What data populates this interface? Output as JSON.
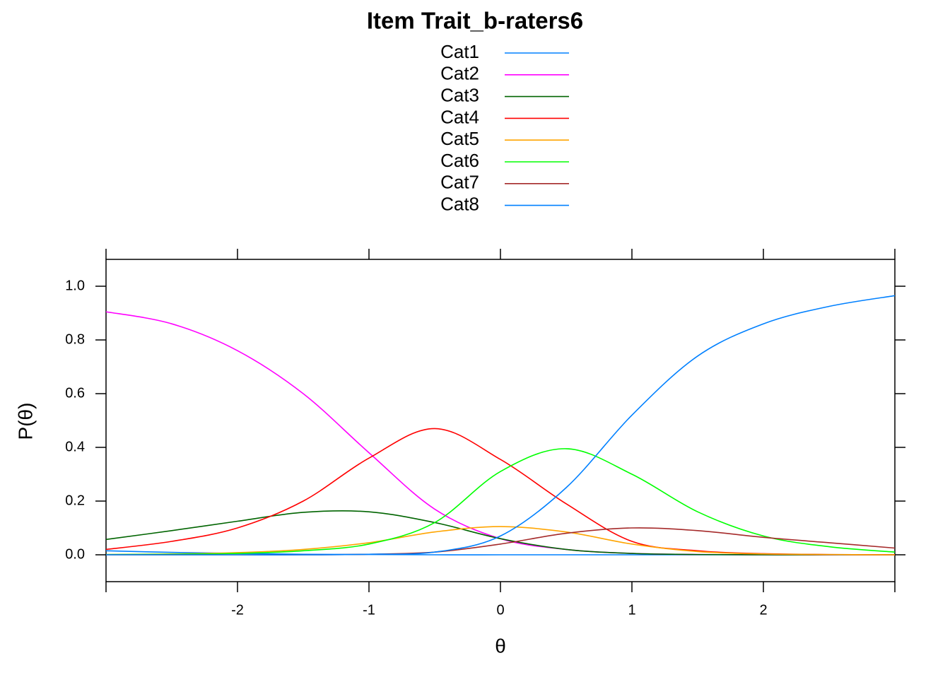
{
  "chart_data": {
    "type": "line",
    "title": "Item Trait_b-raters6",
    "x_label": "θ",
    "y_label": "P(θ)",
    "x": [
      -3,
      -2.5,
      -2,
      -1.5,
      -1,
      -0.5,
      0,
      0.5,
      1,
      1.5,
      2,
      2.5,
      3
    ],
    "series": [
      {
        "name": "Cat1",
        "color": "#0080ff",
        "values": [
          0.015,
          0.009,
          0.005,
          0.002,
          0.001,
          0,
          0,
          0,
          0,
          0,
          0,
          0,
          0
        ]
      },
      {
        "name": "Cat2",
        "color": "#ff00ff",
        "values": [
          0.905,
          0.86,
          0.76,
          0.6,
          0.38,
          0.17,
          0.06,
          0.02,
          0.005,
          0.001,
          0,
          0,
          0
        ]
      },
      {
        "name": "Cat3",
        "color": "#006400",
        "values": [
          0.057,
          0.09,
          0.125,
          0.158,
          0.16,
          0.12,
          0.06,
          0.02,
          0.005,
          0.001,
          0,
          0,
          0
        ]
      },
      {
        "name": "Cat4",
        "color": "#ff0000",
        "values": [
          0.02,
          0.05,
          0.1,
          0.2,
          0.36,
          0.47,
          0.355,
          0.19,
          0.05,
          0.015,
          0.004,
          0.001,
          0
        ]
      },
      {
        "name": "Cat5",
        "color": "#ffa500",
        "values": [
          0.001,
          0.003,
          0.008,
          0.02,
          0.045,
          0.085,
          0.105,
          0.085,
          0.04,
          0.012,
          0.003,
          0.001,
          0
        ]
      },
      {
        "name": "Cat6",
        "color": "#00ff00",
        "values": [
          0.001,
          0.002,
          0.005,
          0.015,
          0.04,
          0.12,
          0.31,
          0.395,
          0.3,
          0.16,
          0.07,
          0.03,
          0.01
        ]
      },
      {
        "name": "Cat7",
        "color": "#a52a2a",
        "values": [
          0,
          0,
          0,
          0,
          0.002,
          0.01,
          0.04,
          0.08,
          0.1,
          0.09,
          0.065,
          0.045,
          0.025
        ]
      },
      {
        "name": "Cat8",
        "color": "#0080ff",
        "values": [
          0,
          0,
          0,
          0,
          0.002,
          0.01,
          0.07,
          0.25,
          0.52,
          0.74,
          0.86,
          0.925,
          0.965
        ]
      }
    ],
    "xlim": [
      -3,
      3
    ],
    "ylim": [
      -0.1,
      1.1
    ],
    "xticks": [
      -2,
      -1,
      0,
      1,
      2
    ],
    "yticks": [
      {
        "value": 0,
        "label": "0.0"
      },
      0.2,
      0.4,
      0.6,
      0.8,
      {
        "value": 1,
        "label": "1.0"
      }
    ]
  }
}
